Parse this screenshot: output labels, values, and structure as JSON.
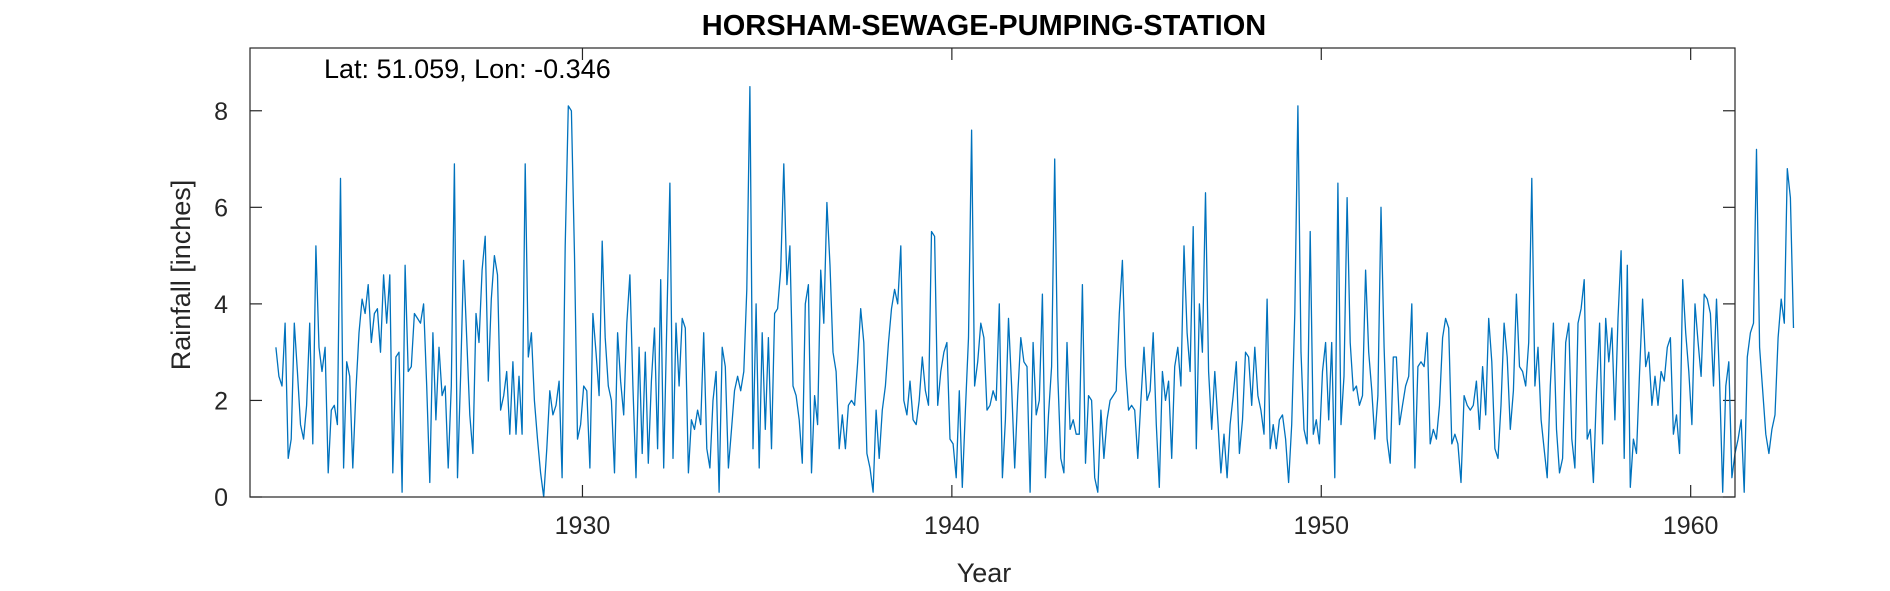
{
  "chart_data": {
    "type": "line",
    "title": "HORSHAM-SEWAGE-PUMPING-STATION",
    "annotation": "Lat: 51.059, Lon: -0.346",
    "xlabel": "Year",
    "ylabel": "Rainfall [inches]",
    "xlim": [
      1921.0,
      1961.2
    ],
    "ylim": [
      0,
      9.3
    ],
    "xticks": [
      1930,
      1940,
      1950,
      1960
    ],
    "yticks": [
      0,
      2,
      4,
      6,
      8
    ],
    "grid": false,
    "series_color": "#0072bd",
    "series": [
      {
        "start_year": 1921.7,
        "step_years": 0.0833333,
        "values": [
          3.1,
          2.5,
          2.3,
          3.6,
          0.8,
          1.2,
          3.6,
          2.6,
          1.5,
          1.2,
          1.9,
          3.6,
          1.1,
          5.2,
          3.1,
          2.6,
          3.1,
          0.5,
          1.8,
          1.9,
          1.5,
          6.6,
          0.6,
          2.8,
          2.5,
          0.6,
          2.2,
          3.4,
          4.1,
          3.8,
          4.4,
          3.2,
          3.8,
          3.9,
          3.0,
          4.6,
          3.6,
          4.6,
          0.5,
          2.9,
          3.0,
          0.1,
          4.8,
          2.6,
          2.7,
          3.8,
          3.7,
          3.6,
          4.0,
          2.3,
          0.3,
          3.4,
          1.6,
          3.1,
          2.1,
          2.3,
          0.6,
          2.3,
          6.9,
          0.4,
          2.5,
          4.9,
          3.3,
          1.7,
          0.9,
          3.8,
          3.2,
          4.7,
          5.4,
          2.4,
          4.1,
          5.0,
          4.6,
          1.8,
          2.1,
          2.6,
          1.3,
          2.8,
          1.3,
          2.5,
          1.3,
          6.9,
          2.9,
          3.4,
          2.0,
          1.2,
          0.5,
          0.0,
          1.0,
          2.2,
          1.7,
          1.9,
          2.4,
          0.4,
          5.2,
          8.1,
          8.0,
          5.0,
          1.2,
          1.5,
          2.3,
          2.2,
          0.6,
          3.8,
          3.0,
          2.1,
          5.3,
          3.3,
          2.3,
          2.0,
          0.5,
          3.4,
          2.4,
          1.7,
          3.6,
          4.6,
          2.3,
          0.4,
          3.1,
          0.9,
          3.0,
          0.7,
          2.4,
          3.5,
          1.0,
          4.5,
          0.6,
          3.6,
          6.5,
          0.8,
          3.6,
          2.3,
          3.7,
          3.5,
          0.5,
          1.6,
          1.4,
          1.8,
          1.5,
          3.4,
          1.0,
          0.6,
          2.0,
          2.6,
          0.1,
          3.1,
          2.7,
          0.6,
          1.4,
          2.2,
          2.5,
          2.2,
          2.6,
          4.3,
          8.5,
          1.0,
          4.0,
          0.6,
          3.4,
          1.4,
          3.3,
          1.0,
          3.8,
          3.9,
          4.7,
          6.9,
          4.4,
          5.2,
          2.3,
          2.1,
          1.6,
          0.7,
          4.0,
          4.4,
          0.5,
          2.1,
          1.5,
          4.7,
          3.6,
          6.1,
          4.8,
          3.0,
          2.6,
          1.0,
          1.7,
          1.0,
          1.9,
          2.0,
          1.9,
          2.8,
          3.9,
          3.2,
          0.9,
          0.6,
          0.1,
          1.8,
          0.8,
          1.8,
          2.3,
          3.2,
          3.9,
          4.3,
          4.0,
          5.2,
          2.0,
          1.7,
          2.4,
          1.6,
          1.5,
          2.0,
          2.9,
          2.2,
          1.9,
          5.5,
          5.4,
          1.9,
          2.6,
          3.0,
          3.2,
          1.2,
          1.1,
          0.4,
          2.2,
          0.2,
          1.8,
          3.3,
          7.6,
          2.3,
          2.8,
          3.6,
          3.3,
          1.8,
          1.9,
          2.2,
          2.0,
          4.0,
          0.4,
          1.6,
          3.7,
          2.3,
          0.6,
          2.1,
          3.3,
          2.8,
          2.7,
          0.1,
          3.2,
          1.7,
          2.0,
          4.2,
          0.4,
          1.7,
          2.7,
          7.0,
          2.5,
          0.8,
          0.5,
          3.2,
          1.4,
          1.6,
          1.3,
          1.3,
          4.4,
          0.7,
          2.1,
          2.0,
          0.4,
          0.1,
          1.8,
          0.8,
          1.6,
          2.0,
          2.1,
          2.2,
          3.8,
          4.9,
          2.7,
          1.8,
          1.9,
          1.8,
          0.8,
          2.0,
          3.1,
          2.0,
          2.2,
          3.4,
          1.5,
          0.2,
          2.6,
          2.0,
          2.4,
          0.8,
          2.7,
          3.1,
          2.3,
          5.2,
          3.4,
          2.6,
          5.6,
          1.0,
          4.0,
          3.0,
          6.3,
          2.6,
          1.4,
          2.6,
          1.6,
          0.5,
          1.3,
          0.4,
          1.5,
          2.1,
          2.8,
          0.9,
          1.6,
          3.0,
          2.9,
          1.9,
          3.1,
          2.1,
          1.8,
          1.3,
          4.1,
          1.0,
          1.5,
          1.0,
          1.6,
          1.7,
          1.2,
          0.3,
          1.5,
          3.8,
          8.1,
          3.0,
          1.4,
          1.1,
          5.5,
          1.3,
          1.6,
          1.1,
          2.6,
          3.2,
          1.6,
          3.2,
          0.4,
          6.5,
          1.5,
          2.5,
          6.2,
          3.2,
          2.2,
          2.3,
          1.9,
          2.1,
          4.7,
          3.0,
          2.2,
          1.2,
          2.1,
          6.0,
          3.1,
          1.2,
          0.7,
          2.9,
          2.9,
          1.5,
          1.9,
          2.3,
          2.5,
          4.0,
          0.6,
          2.7,
          2.8,
          2.7,
          3.4,
          1.1,
          1.4,
          1.2,
          1.9,
          3.3,
          3.7,
          3.5,
          1.1,
          1.3,
          1.1,
          0.3,
          2.1,
          1.9,
          1.8,
          1.9,
          2.4,
          1.4,
          2.7,
          1.7,
          3.7,
          2.8,
          1.0,
          0.8,
          1.9,
          3.6,
          2.9,
          1.4,
          2.2,
          4.2,
          2.7,
          2.6,
          2.3,
          3.2,
          6.6,
          2.3,
          3.1,
          1.6,
          1.0,
          0.4,
          2.3,
          3.6,
          1.4,
          0.5,
          0.8,
          3.2,
          3.6,
          1.2,
          0.6,
          3.6,
          3.9,
          4.5,
          1.2,
          1.4,
          0.3,
          2.2,
          3.6,
          1.1,
          3.7,
          2.8,
          3.5,
          1.6,
          3.7,
          5.1,
          0.8,
          4.8,
          0.2,
          1.2,
          0.9,
          2.6,
          4.1,
          2.7,
          3.0,
          1.9,
          2.5,
          1.9,
          2.6,
          2.4,
          3.1,
          3.3,
          1.3,
          1.7,
          0.9,
          4.5,
          3.4,
          2.6,
          1.5,
          4.0,
          3.2,
          2.5,
          4.2,
          4.1,
          3.8,
          2.3,
          4.1,
          2.4,
          0.1,
          2.3,
          2.8,
          0.4,
          0.9,
          1.2,
          1.6,
          0.1,
          2.9,
          3.4,
          3.6,
          7.2,
          3.1,
          2.2,
          1.3,
          0.9,
          1.4,
          1.7,
          3.3,
          4.1,
          3.6,
          6.8,
          6.2,
          3.5
        ]
      }
    ]
  }
}
